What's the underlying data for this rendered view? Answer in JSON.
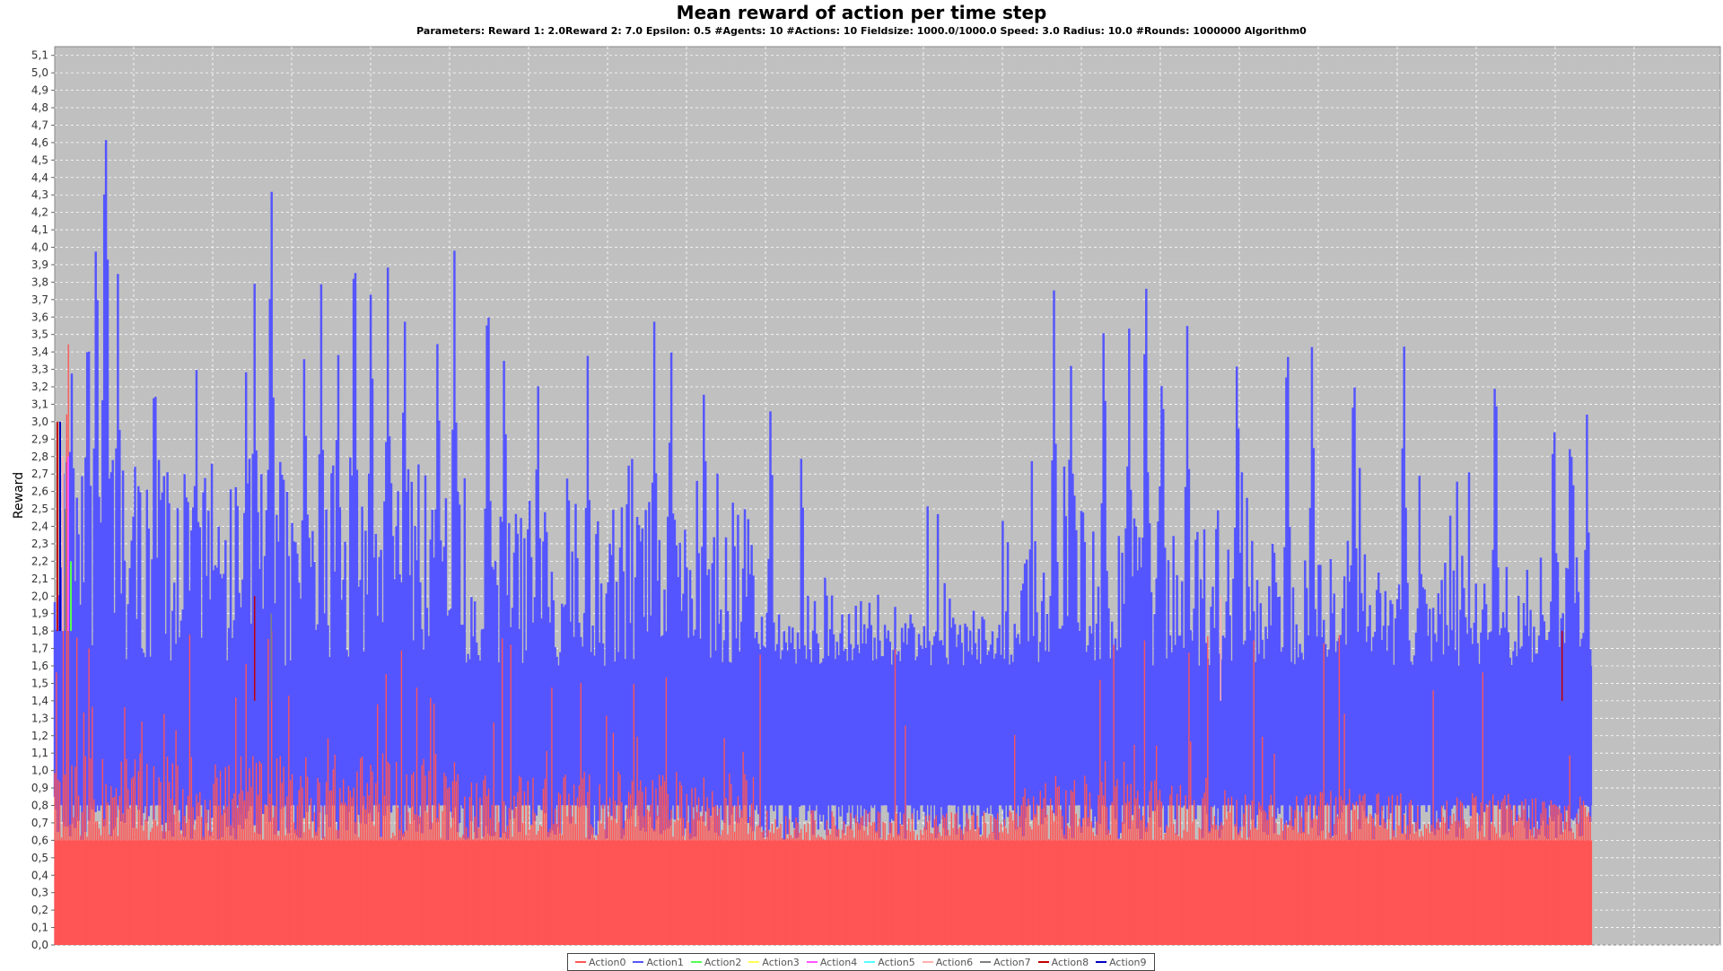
{
  "chart_data": {
    "type": "area",
    "title": "Mean reward of action per time step",
    "subtitle": "Parameters: Reward 1: 2.0Reward 2: 7.0 Epsilon: 0.5 #Agents: 10 #Actions: 10 Fieldsize: 1000.0/1000.0 Speed: 3.0 Radius: 10.0 #Rounds: 1000000 Algorithm0",
    "xlabel": "",
    "ylabel": "Reward",
    "ylim": [
      0,
      5.15
    ],
    "y_ticks": [
      "0,0",
      "0,1",
      "0,2",
      "0,3",
      "0,4",
      "0,5",
      "0,6",
      "0,7",
      "0,8",
      "0,9",
      "1,0",
      "1,1",
      "1,2",
      "1,3",
      "1,4",
      "1,5",
      "1,6",
      "1,7",
      "1,8",
      "1,9",
      "2,0",
      "2,1",
      "2,2",
      "2,3",
      "2,4",
      "2,5",
      "2,6",
      "2,7",
      "2,8",
      "2,9",
      "3,0",
      "3,1",
      "3,2",
      "3,3",
      "3,4",
      "3,5",
      "3,6",
      "3,7",
      "3,8",
      "3,9",
      "4,0",
      "4,1",
      "4,2",
      "4,3",
      "4,4",
      "4,5",
      "4,6",
      "4,7",
      "4,8",
      "4,9",
      "5,0",
      "5,1"
    ],
    "x_data_extent": 0.923,
    "grid": true,
    "legend_position": "bottom",
    "series": [
      {
        "name": "Action0",
        "color": "#ff5555",
        "baseline": 0.6,
        "typical": [
          0.6,
          1.1
        ],
        "max": 3.7
      },
      {
        "name": "Action1",
        "color": "#5555ff",
        "baseline": 1.6,
        "typical": [
          0.8,
          2.6
        ],
        "max": 4.9,
        "peaks": [
          [
            0.01,
            3.5
          ],
          [
            0.02,
            3.9
          ],
          [
            0.025,
            4.4
          ],
          [
            0.03,
            4.6
          ],
          [
            0.031,
            4.9
          ],
          [
            0.038,
            3.9
          ],
          [
            0.06,
            3.6
          ],
          [
            0.085,
            3.4
          ],
          [
            0.115,
            3.4
          ],
          [
            0.12,
            3.8
          ],
          [
            0.13,
            4.6
          ],
          [
            0.15,
            3.6
          ],
          [
            0.16,
            3.8
          ],
          [
            0.17,
            3.6
          ],
          [
            0.18,
            4.4
          ],
          [
            0.19,
            4.0
          ],
          [
            0.2,
            3.9
          ],
          [
            0.21,
            3.8
          ],
          [
            0.23,
            3.7
          ],
          [
            0.24,
            4.0
          ],
          [
            0.26,
            4.1
          ],
          [
            0.27,
            3.6
          ],
          [
            0.29,
            3.4
          ],
          [
            0.32,
            3.4
          ],
          [
            0.36,
            3.6
          ],
          [
            0.37,
            3.6
          ],
          [
            0.39,
            3.4
          ],
          [
            0.43,
            3.3
          ],
          [
            0.6,
            3.8
          ],
          [
            0.61,
            3.5
          ],
          [
            0.63,
            3.8
          ],
          [
            0.645,
            3.6
          ],
          [
            0.655,
            4.1
          ],
          [
            0.665,
            3.6
          ],
          [
            0.68,
            3.6
          ],
          [
            0.71,
            3.6
          ],
          [
            0.74,
            3.8
          ],
          [
            0.755,
            3.6
          ],
          [
            0.78,
            3.6
          ],
          [
            0.81,
            3.6
          ],
          [
            0.865,
            3.6
          ],
          [
            0.9,
            3.3
          ],
          [
            0.91,
            3.1
          ],
          [
            0.92,
            3.1
          ]
        ]
      },
      {
        "name": "Action2",
        "color": "#55ff55",
        "baseline": 0,
        "typical": [
          0,
          0
        ],
        "max": 2.2
      },
      {
        "name": "Action3",
        "color": "#ffff55",
        "baseline": 0,
        "typical": [
          0,
          0
        ],
        "max": 0.3
      },
      {
        "name": "Action4",
        "color": "#ff55ff",
        "baseline": 0,
        "typical": [
          0,
          0
        ],
        "max": 2.8
      },
      {
        "name": "Action5",
        "color": "#55ffff",
        "baseline": 0,
        "typical": [
          0,
          0
        ],
        "max": 0.3
      },
      {
        "name": "Action6",
        "color": "#ffafaf",
        "baseline": 0,
        "typical": [
          0,
          0
        ],
        "max": 2.0
      },
      {
        "name": "Action7",
        "color": "#808080",
        "baseline": 0,
        "typical": [
          0,
          0
        ],
        "max": 2.0
      },
      {
        "name": "Action8",
        "color": "#c00000",
        "baseline": 0,
        "typical": [
          0,
          0
        ],
        "max": 3.0
      },
      {
        "name": "Action9",
        "color": "#0000c0",
        "baseline": 0,
        "typical": [
          0,
          0
        ],
        "max": 1.8
      }
    ]
  }
}
